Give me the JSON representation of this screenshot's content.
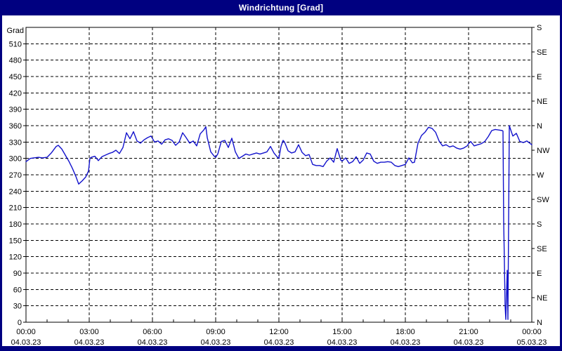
{
  "window": {
    "title": "Windrichtung [Grad]"
  },
  "colors": {
    "frame": "#000080",
    "titlebar_text": "#ffffff",
    "plot_background": "#ffffff",
    "grid": "#000000",
    "line": "#1212cc"
  },
  "chart_data": {
    "type": "line",
    "title": "Windrichtung [Grad]",
    "grid": "dashed",
    "legend_position": "none",
    "y_left": {
      "label": "Grad",
      "min": 0,
      "max": 540,
      "step": 30,
      "tick_labels": [
        0,
        30,
        60,
        90,
        120,
        150,
        180,
        210,
        240,
        270,
        300,
        330,
        360,
        390,
        420,
        450,
        480,
        510
      ]
    },
    "y_right": {
      "min": 0,
      "max": 540,
      "step": 45,
      "labels_bottom_to_top": [
        "N",
        "NE",
        "E",
        "SE",
        "S",
        "SW",
        "W",
        "NW",
        "N",
        "NE",
        "E",
        "SE",
        "S"
      ]
    },
    "x_axis": {
      "start_minutes": 0,
      "end_minutes": 1440,
      "major_step_minutes": 180,
      "minor_step_minutes": 60,
      "major_labels": [
        {
          "time": "00:00",
          "date": "04.03.23"
        },
        {
          "time": "03:00",
          "date": "04.03.23"
        },
        {
          "time": "06:00",
          "date": "04.03.23"
        },
        {
          "time": "09:00",
          "date": "04.03.23"
        },
        {
          "time": "12:00",
          "date": "04.03.23"
        },
        {
          "time": "15:00",
          "date": "04.03.23"
        },
        {
          "time": "18:00",
          "date": "04.03.23"
        },
        {
          "time": "21:00",
          "date": "04.03.23"
        },
        {
          "time": "00:00",
          "date": "05.03.23"
        }
      ]
    },
    "series": [
      {
        "name": "Windrichtung",
        "color": "#1212cc",
        "units": "Grad",
        "x_units": "minutes_since_00:00_04.03.23",
        "points": [
          [
            0,
            294
          ],
          [
            12,
            300
          ],
          [
            22,
            301
          ],
          [
            36,
            302
          ],
          [
            46,
            301
          ],
          [
            60,
            302
          ],
          [
            72,
            310
          ],
          [
            86,
            322
          ],
          [
            92,
            324
          ],
          [
            102,
            317
          ],
          [
            112,
            306
          ],
          [
            122,
            295
          ],
          [
            132,
            282
          ],
          [
            142,
            267
          ],
          [
            150,
            253
          ],
          [
            160,
            259
          ],
          [
            170,
            266
          ],
          [
            178,
            277
          ],
          [
            182,
            300
          ],
          [
            186,
            302
          ],
          [
            196,
            304
          ],
          [
            206,
            296
          ],
          [
            216,
            303
          ],
          [
            226,
            306
          ],
          [
            236,
            309
          ],
          [
            246,
            311
          ],
          [
            256,
            315
          ],
          [
            266,
            309
          ],
          [
            276,
            320
          ],
          [
            286,
            347
          ],
          [
            296,
            336
          ],
          [
            306,
            349
          ],
          [
            316,
            332
          ],
          [
            326,
            328
          ],
          [
            336,
            334
          ],
          [
            346,
            338
          ],
          [
            356,
            341
          ],
          [
            366,
            330
          ],
          [
            376,
            332
          ],
          [
            386,
            326
          ],
          [
            396,
            334
          ],
          [
            406,
            336
          ],
          [
            416,
            333
          ],
          [
            426,
            324
          ],
          [
            436,
            330
          ],
          [
            446,
            347
          ],
          [
            456,
            338
          ],
          [
            466,
            328
          ],
          [
            476,
            332
          ],
          [
            486,
            323
          ],
          [
            496,
            345
          ],
          [
            506,
            352
          ],
          [
            512,
            358
          ],
          [
            516,
            338
          ],
          [
            526,
            312
          ],
          [
            536,
            304
          ],
          [
            540,
            302
          ],
          [
            546,
            308
          ],
          [
            556,
            331
          ],
          [
            566,
            333
          ],
          [
            576,
            320
          ],
          [
            586,
            337
          ],
          [
            596,
            312
          ],
          [
            606,
            300
          ],
          [
            616,
            304
          ],
          [
            626,
            308
          ],
          [
            636,
            306
          ],
          [
            646,
            308
          ],
          [
            656,
            310
          ],
          [
            666,
            308
          ],
          [
            676,
            310
          ],
          [
            686,
            312
          ],
          [
            696,
            322
          ],
          [
            706,
            310
          ],
          [
            716,
            302
          ],
          [
            720,
            300
          ],
          [
            726,
            322
          ],
          [
            732,
            333
          ],
          [
            736,
            330
          ],
          [
            746,
            314
          ],
          [
            756,
            310
          ],
          [
            766,
            312
          ],
          [
            776,
            325
          ],
          [
            786,
            311
          ],
          [
            796,
            305
          ],
          [
            806,
            307
          ],
          [
            816,
            289
          ],
          [
            826,
            287
          ],
          [
            836,
            287
          ],
          [
            846,
            285
          ],
          [
            856,
            295
          ],
          [
            866,
            301
          ],
          [
            876,
            293
          ],
          [
            886,
            318
          ],
          [
            896,
            297
          ],
          [
            900,
            295
          ],
          [
            910,
            301
          ],
          [
            920,
            291
          ],
          [
            930,
            294
          ],
          [
            940,
            303
          ],
          [
            950,
            291
          ],
          [
            960,
            297
          ],
          [
            970,
            310
          ],
          [
            980,
            308
          ],
          [
            990,
            295
          ],
          [
            1000,
            291
          ],
          [
            1010,
            293
          ],
          [
            1020,
            293
          ],
          [
            1030,
            294
          ],
          [
            1040,
            293
          ],
          [
            1050,
            287
          ],
          [
            1060,
            285
          ],
          [
            1070,
            287
          ],
          [
            1080,
            289
          ],
          [
            1090,
            301
          ],
          [
            1100,
            292
          ],
          [
            1106,
            293
          ],
          [
            1116,
            328
          ],
          [
            1126,
            342
          ],
          [
            1136,
            348
          ],
          [
            1146,
            357
          ],
          [
            1156,
            355
          ],
          [
            1166,
            348
          ],
          [
            1176,
            332
          ],
          [
            1186,
            323
          ],
          [
            1196,
            325
          ],
          [
            1206,
            321
          ],
          [
            1216,
            323
          ],
          [
            1226,
            319
          ],
          [
            1236,
            317
          ],
          [
            1246,
            319
          ],
          [
            1256,
            323
          ],
          [
            1260,
            327
          ],
          [
            1266,
            331
          ],
          [
            1276,
            323
          ],
          [
            1286,
            325
          ],
          [
            1296,
            327
          ],
          [
            1306,
            331
          ],
          [
            1316,
            340
          ],
          [
            1326,
            351
          ],
          [
            1336,
            353
          ],
          [
            1346,
            352
          ],
          [
            1356,
            351
          ],
          [
            1358,
            350
          ],
          [
            1360,
            183
          ],
          [
            1362,
            110
          ],
          [
            1364,
            30
          ],
          [
            1366,
            5
          ],
          [
            1370,
            95
          ],
          [
            1372,
            5
          ],
          [
            1376,
            360
          ],
          [
            1386,
            341
          ],
          [
            1396,
            346
          ],
          [
            1406,
            331
          ],
          [
            1416,
            329
          ],
          [
            1426,
            332
          ],
          [
            1436,
            327
          ],
          [
            1440,
            325
          ]
        ]
      }
    ]
  }
}
